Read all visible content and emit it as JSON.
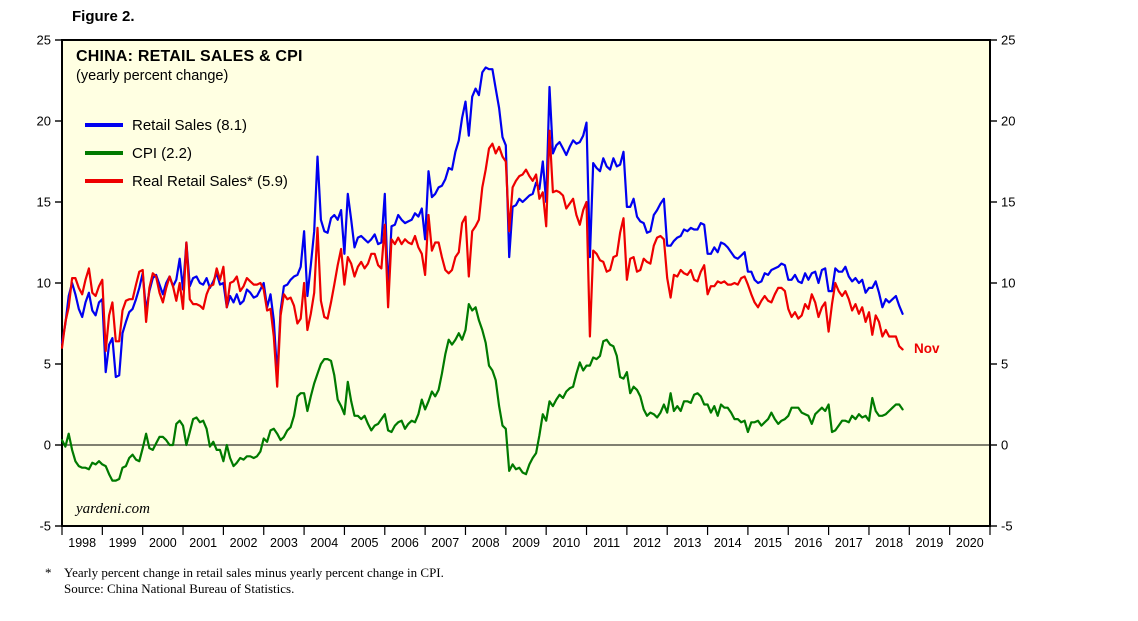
{
  "figure_label": "Figure 2.",
  "chart": {
    "title": "CHINA: RETAIL SALES & CPI",
    "subtitle": "(yearly percent change)",
    "watermark": "yardeni.com",
    "nov_annotation": "Nov",
    "nov_annotation_color": "#ee0000"
  },
  "legend": [
    {
      "label": "Retail Sales (8.1)"
    },
    {
      "label": "CPI (2.2)"
    },
    {
      "label": "Real Retail Sales* (5.9)"
    }
  ],
  "footnote": {
    "star": "*",
    "text": "Yearly percent change in retail sales minus yearly percent change in CPI.",
    "source": "Source: China National Bureau of Statistics."
  },
  "chart_data": {
    "type": "line",
    "title": "CHINA: RETAIL SALES & CPI",
    "subtitle": "(yearly percent change)",
    "frequency": "monthly",
    "x_start": "1998-01",
    "x_end": "2018-11",
    "x_axis_years": [
      1998,
      1999,
      2000,
      2001,
      2002,
      2003,
      2004,
      2005,
      2006,
      2007,
      2008,
      2009,
      2010,
      2011,
      2012,
      2013,
      2014,
      2015,
      2016,
      2017,
      2018,
      2019,
      2020
    ],
    "ylim": [
      -5,
      25
    ],
    "yticks": [
      -5,
      0,
      5,
      10,
      15,
      20,
      25
    ],
    "plot_bg": "#ffffe2",
    "grid": false,
    "legend_position": "top-left-inside",
    "latest": {
      "month": "Nov 2018",
      "retail_sales": 8.1,
      "cpi": 2.2,
      "real_retail_sales": 5.9
    },
    "series": [
      {
        "key": "retail_sales",
        "name": "Retail Sales",
        "color": "#0000f0",
        "values": [
          6.3,
          7.5,
          9.2,
          10.0,
          9.3,
          8.4,
          7.9,
          8.8,
          9.4,
          8.3,
          8.0,
          8.8,
          9.0,
          4.5,
          6.2,
          6.6,
          4.2,
          4.3,
          6.9,
          7.6,
          8.2,
          8.4,
          9.0,
          9.7,
          10.6,
          8.3,
          9.5,
          10.3,
          10.5,
          9.9,
          9.3,
          10.0,
          10.4,
          9.8,
          10.2,
          11.5,
          9.6,
          12.5,
          9.8,
          10.3,
          10.4,
          10.0,
          9.9,
          10.3,
          9.7,
          10.1,
          10.6,
          9.9,
          10.0,
          8.5,
          9.2,
          8.8,
          9.3,
          8.7,
          8.9,
          9.6,
          9.4,
          9.1,
          9.2,
          9.6,
          10.0,
          8.5,
          9.3,
          7.7,
          4.3,
          8.3,
          9.8,
          9.9,
          10.2,
          10.4,
          10.5,
          11.0,
          13.2,
          9.2,
          11.1,
          13.2,
          17.8,
          13.9,
          13.2,
          13.1,
          14.0,
          14.2,
          13.9,
          14.5,
          11.8,
          15.5,
          13.9,
          12.2,
          12.8,
          12.9,
          12.7,
          12.5,
          12.7,
          13.0,
          12.4,
          12.5,
          15.5,
          9.4,
          13.5,
          13.6,
          14.2,
          13.9,
          13.7,
          13.8,
          13.9,
          14.3,
          14.1,
          14.6,
          12.7,
          16.9,
          15.3,
          15.5,
          15.9,
          16.0,
          16.4,
          17.1,
          17.0,
          18.1,
          18.8,
          20.2,
          21.2,
          19.1,
          21.5,
          22.0,
          21.6,
          23.0,
          23.3,
          23.2,
          23.2,
          22.0,
          20.8,
          19.0,
          18.5,
          11.6,
          14.7,
          14.8,
          15.2,
          15.0,
          15.2,
          15.4,
          15.5,
          16.2,
          15.8,
          17.5,
          15.0,
          22.1,
          18.0,
          18.5,
          18.7,
          18.3,
          17.9,
          18.4,
          18.8,
          18.6,
          18.7,
          19.1,
          19.9,
          11.6,
          17.4,
          17.1,
          16.9,
          17.7,
          17.2,
          17.0,
          17.7,
          17.2,
          17.3,
          18.1,
          14.7,
          14.7,
          15.2,
          14.1,
          13.8,
          13.7,
          13.1,
          13.2,
          14.2,
          14.5,
          14.9,
          15.2,
          12.3,
          12.3,
          12.6,
          12.8,
          12.9,
          13.3,
          13.2,
          13.4,
          13.3,
          13.3,
          13.7,
          13.6,
          11.8,
          11.8,
          12.2,
          11.9,
          12.5,
          12.4,
          12.2,
          11.9,
          11.6,
          11.5,
          11.7,
          11.9,
          10.7,
          10.7,
          10.2,
          10.0,
          10.1,
          10.6,
          10.5,
          10.8,
          10.9,
          11.0,
          11.2,
          11.1,
          10.2,
          10.2,
          10.5,
          10.1,
          10.0,
          10.6,
          10.2,
          10.6,
          10.7,
          10.0,
          10.8,
          10.9,
          9.5,
          9.5,
          10.9,
          10.7,
          10.7,
          11.0,
          10.4,
          10.1,
          10.3,
          10.0,
          10.2,
          9.4,
          9.7,
          9.7,
          10.1,
          9.4,
          8.5,
          9.0,
          8.8,
          9.0,
          9.2,
          8.6,
          8.1
        ]
      },
      {
        "key": "cpi",
        "name": "CPI",
        "color": "#007a00",
        "values": [
          0.3,
          -0.1,
          0.7,
          -0.3,
          -1.0,
          -1.3,
          -1.4,
          -1.4,
          -1.5,
          -1.1,
          -1.2,
          -1.0,
          -1.2,
          -1.3,
          -1.8,
          -2.2,
          -2.2,
          -2.1,
          -1.4,
          -1.3,
          -0.8,
          -0.6,
          -0.9,
          -1.0,
          -0.2,
          0.7,
          -0.2,
          -0.3,
          0.1,
          0.5,
          0.5,
          0.3,
          0.0,
          0.0,
          1.3,
          1.5,
          1.2,
          0.0,
          0.8,
          1.6,
          1.7,
          1.4,
          1.5,
          1.0,
          -0.1,
          0.2,
          -0.3,
          -0.3,
          -1.0,
          0.0,
          -0.8,
          -1.3,
          -1.1,
          -0.8,
          -0.9,
          -0.7,
          -0.7,
          -0.8,
          -0.7,
          -0.4,
          0.4,
          0.2,
          0.9,
          1.0,
          0.7,
          0.3,
          0.5,
          0.9,
          1.1,
          1.8,
          3.0,
          3.2,
          3.2,
          2.1,
          3.0,
          3.8,
          4.4,
          5.0,
          5.3,
          5.3,
          5.2,
          4.3,
          2.8,
          2.4,
          1.9,
          3.9,
          2.7,
          1.8,
          1.8,
          1.6,
          1.8,
          1.3,
          0.9,
          1.2,
          1.3,
          1.6,
          1.9,
          0.9,
          0.8,
          1.2,
          1.4,
          1.5,
          1.0,
          1.3,
          1.5,
          1.4,
          1.9,
          2.8,
          2.2,
          2.7,
          3.3,
          3.0,
          3.4,
          4.4,
          5.6,
          6.5,
          6.2,
          6.5,
          6.9,
          6.5,
          7.1,
          8.7,
          8.3,
          8.5,
          7.7,
          7.1,
          6.3,
          4.9,
          4.6,
          4.0,
          2.4,
          1.2,
          1.0,
          -1.6,
          -1.2,
          -1.5,
          -1.4,
          -1.7,
          -1.8,
          -1.2,
          -0.8,
          -0.5,
          0.6,
          1.9,
          1.5,
          2.7,
          2.4,
          2.8,
          3.1,
          2.9,
          3.3,
          3.5,
          3.6,
          4.4,
          5.1,
          4.6,
          4.9,
          4.9,
          5.4,
          5.3,
          5.5,
          6.4,
          6.5,
          6.2,
          6.1,
          5.5,
          4.2,
          4.1,
          4.5,
          3.2,
          3.6,
          3.4,
          3.0,
          2.2,
          1.8,
          2.0,
          1.9,
          1.7,
          2.0,
          2.5,
          2.0,
          3.2,
          2.1,
          2.4,
          2.1,
          2.7,
          2.7,
          2.6,
          3.1,
          3.2,
          3.0,
          2.5,
          2.5,
          2.0,
          2.4,
          1.8,
          2.5,
          2.3,
          2.3,
          2.0,
          1.6,
          1.6,
          1.4,
          1.5,
          0.8,
          1.4,
          1.4,
          1.5,
          1.2,
          1.4,
          1.6,
          2.0,
          1.6,
          1.3,
          1.5,
          1.6,
          1.8,
          2.3,
          2.3,
          2.3,
          2.0,
          1.9,
          1.8,
          1.3,
          1.9,
          2.1,
          2.3,
          2.1,
          2.5,
          0.8,
          0.9,
          1.2,
          1.5,
          1.5,
          1.4,
          1.8,
          1.6,
          1.9,
          1.7,
          1.8,
          1.5,
          2.9,
          2.1,
          1.8,
          1.8,
          1.9,
          2.1,
          2.3,
          2.5,
          2.5,
          2.2
        ]
      },
      {
        "key": "real_retail_sales",
        "name": "Real Retail Sales",
        "color": "#ee0000",
        "derived": "retail_sales minus cpi",
        "values": []
      }
    ]
  }
}
